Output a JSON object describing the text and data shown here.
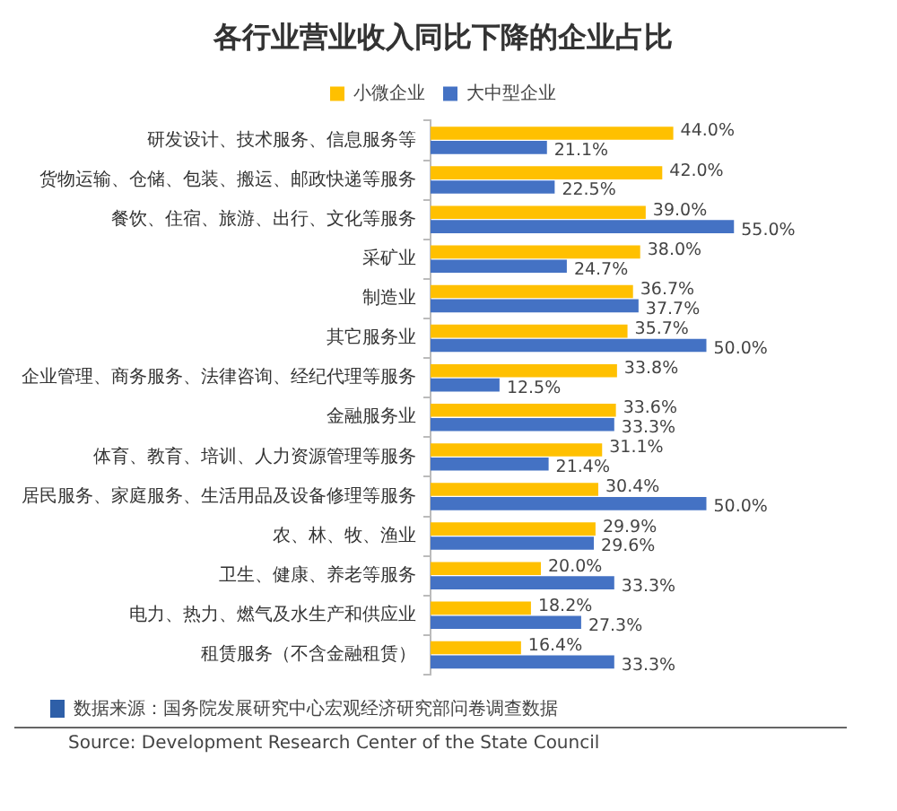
{
  "chart_data": {
    "type": "bar",
    "orientation": "horizontal",
    "title": "各行业营业收入同比下降的企业占比",
    "legend": "top",
    "categories": [
      "研发设计、技术服务、信息服务等",
      "货物运输、仓储、包装、搬运、邮政快递等服务",
      "餐饮、住宿、旅游、出行、文化等服务",
      "采矿业",
      "制造业",
      "其它服务业",
      "企业管理、商务服务、法律咨询、经纪代理等服务",
      "金融服务业",
      "体育、教育、培训、人力资源管理等服务",
      "居民服务、家庭服务、生活用品及设备修理等服务",
      "农、林、牧、渔业",
      "卫生、健康、养老等服务",
      "电力、热力、燃气及水生产和供应业",
      "租赁服务（不含金融租赁）"
    ],
    "series": [
      {
        "name": "小微企业",
        "color": "#ffc000",
        "values": [
          44.0,
          42.0,
          39.0,
          38.0,
          36.7,
          35.7,
          33.8,
          33.6,
          31.1,
          30.4,
          29.9,
          20.0,
          18.2,
          16.4
        ],
        "value_labels": [
          "44.0%",
          "42.0%",
          "39.0%",
          "38.0%",
          "36.7%",
          "35.7%",
          "33.8%",
          "33.6%",
          "31.1%",
          "30.4%",
          "29.9%",
          "20.0%",
          "18.2%",
          "16.4%"
        ]
      },
      {
        "name": "大中型企业",
        "color": "#4472c4",
        "values": [
          21.1,
          22.5,
          55.0,
          24.7,
          37.7,
          50.0,
          12.5,
          33.3,
          21.4,
          50.0,
          29.6,
          33.3,
          27.3,
          33.3
        ],
        "value_labels": [
          "21.1%",
          "22.5%",
          "55.0%",
          "24.7%",
          "37.7%",
          "50.0%",
          "12.5%",
          "33.3%",
          "21.4%",
          "50.0%",
          "29.6%",
          "33.3%",
          "27.3%",
          "33.3%"
        ]
      }
    ],
    "annotations": [
      "数据来源：国务院发展研究中心宏观经济研究部问卷调查数据",
      "Source: Development Research Center of the State Council"
    ]
  }
}
